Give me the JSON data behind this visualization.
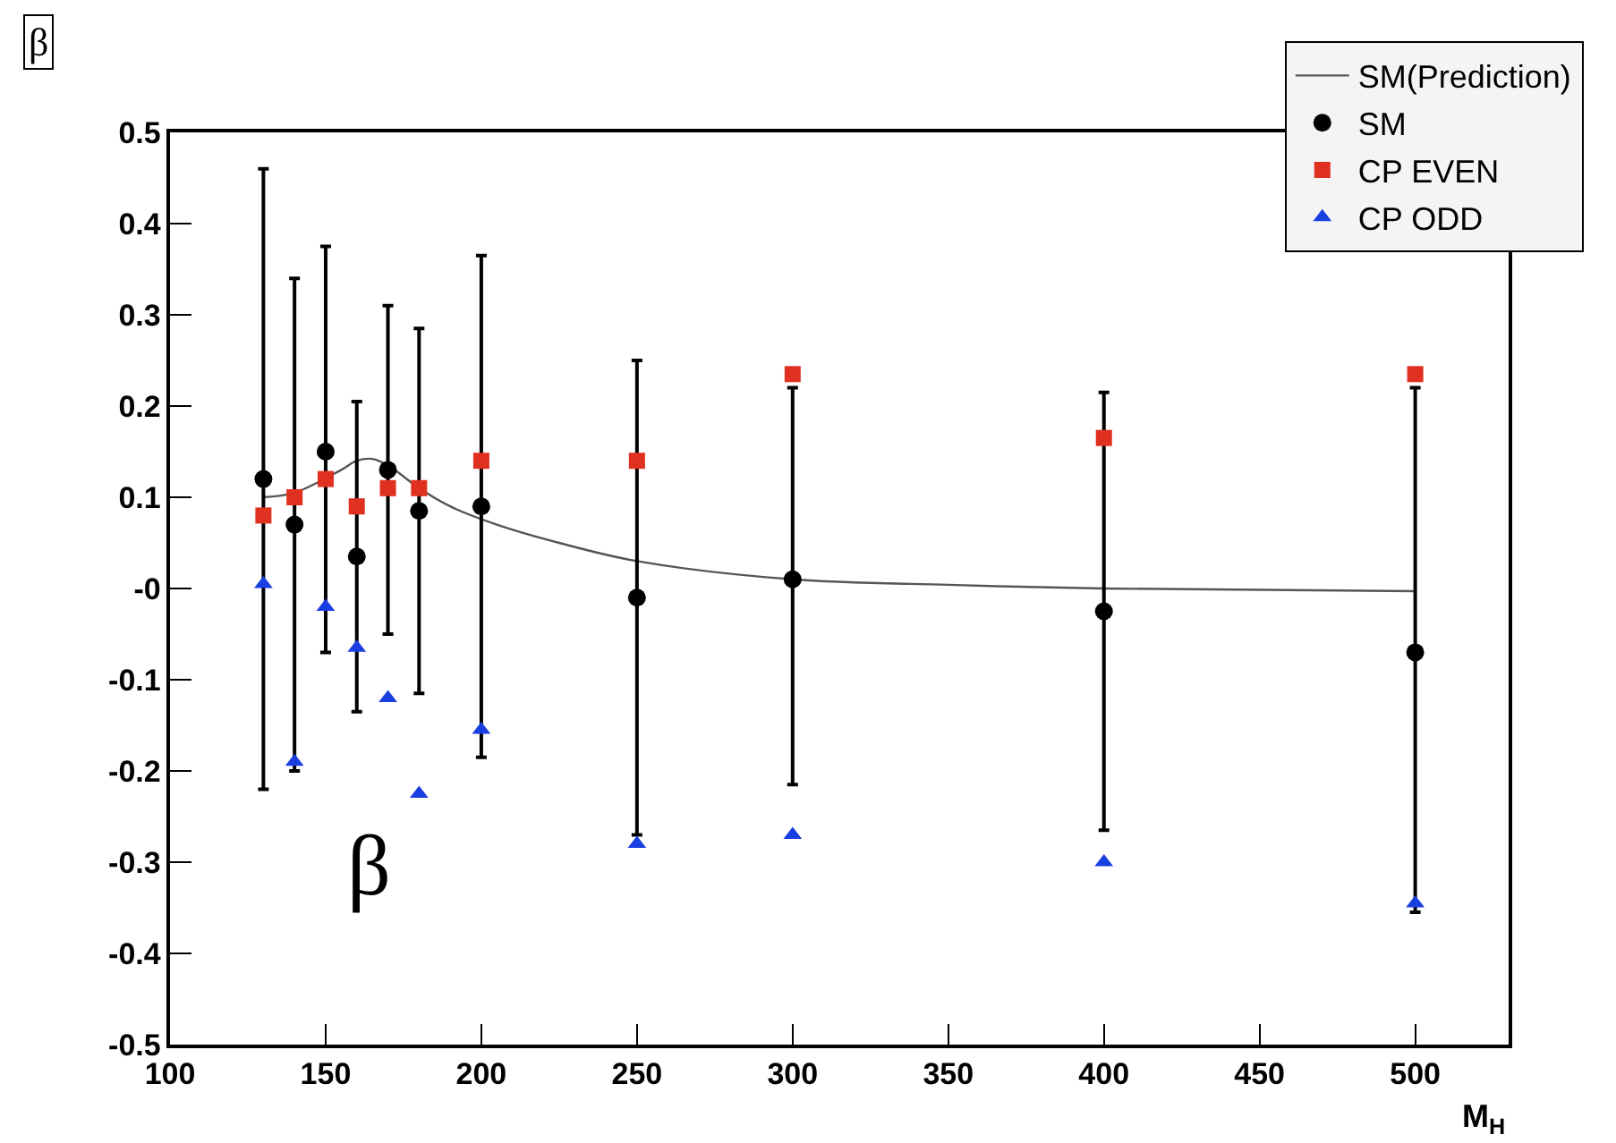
{
  "chart_data": {
    "type": "scatter",
    "title": "β",
    "xlabel": "M$_{H}$",
    "annotations": [
      "β"
    ],
    "xlim": [
      100,
      530
    ],
    "xticks": [
      100,
      150,
      200,
      250,
      300,
      350,
      400,
      450,
      500
    ],
    "ylim": [
      -0.5,
      0.5
    ],
    "yticks": [
      -0.5,
      -0.4,
      -0.3,
      -0.2,
      -0.1,
      {
        "value": 0,
        "label": "-0"
      },
      0.1,
      0.2,
      0.3,
      0.4,
      0.5
    ],
    "grid": false,
    "legend": "top right",
    "series": [
      {
        "name": "SM(Prediction)",
        "type": "line",
        "marker": "none",
        "line_style": "solid",
        "color": "#555555",
        "x": [
          130,
          140,
          155,
          160,
          165,
          170,
          180,
          190,
          205,
          225,
          250,
          300,
          350,
          400,
          500
        ],
        "values": [
          0.1,
          0.105,
          0.13,
          0.14,
          0.142,
          0.135,
          0.11,
          0.09,
          0.07,
          0.05,
          0.03,
          0.01,
          0.004,
          0,
          -0.003
        ]
      },
      {
        "name": "SM",
        "type": "scatter",
        "marker": "circle",
        "color": "#000000",
        "x": [
          130,
          140,
          150,
          160,
          170,
          180,
          200,
          250,
          300,
          400,
          500
        ],
        "values": [
          0.12,
          0.07,
          0.15,
          0.035,
          0.13,
          0.085,
          0.09,
          -0.01,
          0.01,
          -0.025,
          -0.07
        ],
        "errors": [
          [
            -0.22,
            0.46
          ],
          [
            -0.2,
            0.34
          ],
          [
            -0.07,
            0.375
          ],
          [
            -0.135,
            0.205
          ],
          [
            -0.05,
            0.31
          ],
          [
            -0.115,
            0.285
          ],
          [
            -0.185,
            0.365
          ],
          [
            -0.27,
            0.25
          ],
          [
            -0.215,
            0.22
          ],
          [
            -0.265,
            0.215
          ],
          [
            -0.355,
            0.22
          ]
        ]
      },
      {
        "name": "CP EVEN",
        "type": "scatter",
        "marker": "square",
        "color": "#e03020",
        "x": [
          130,
          140,
          150,
          160,
          170,
          180,
          200,
          250,
          300,
          400,
          500
        ],
        "values": [
          0.08,
          0.1,
          0.12,
          0.09,
          0.11,
          0.11,
          0.14,
          0.14,
          0.235,
          0.165,
          0.235
        ]
      },
      {
        "name": "CP ODD",
        "type": "scatter",
        "marker": "triangle",
        "color": "#1a3fe0",
        "x": [
          130,
          140,
          150,
          160,
          170,
          180,
          200,
          250,
          300,
          400,
          500
        ],
        "values": [
          0.005,
          -0.19,
          -0.02,
          -0.065,
          -0.12,
          -0.225,
          -0.155,
          -0.28,
          -0.27,
          -0.3,
          -0.345
        ]
      }
    ]
  }
}
